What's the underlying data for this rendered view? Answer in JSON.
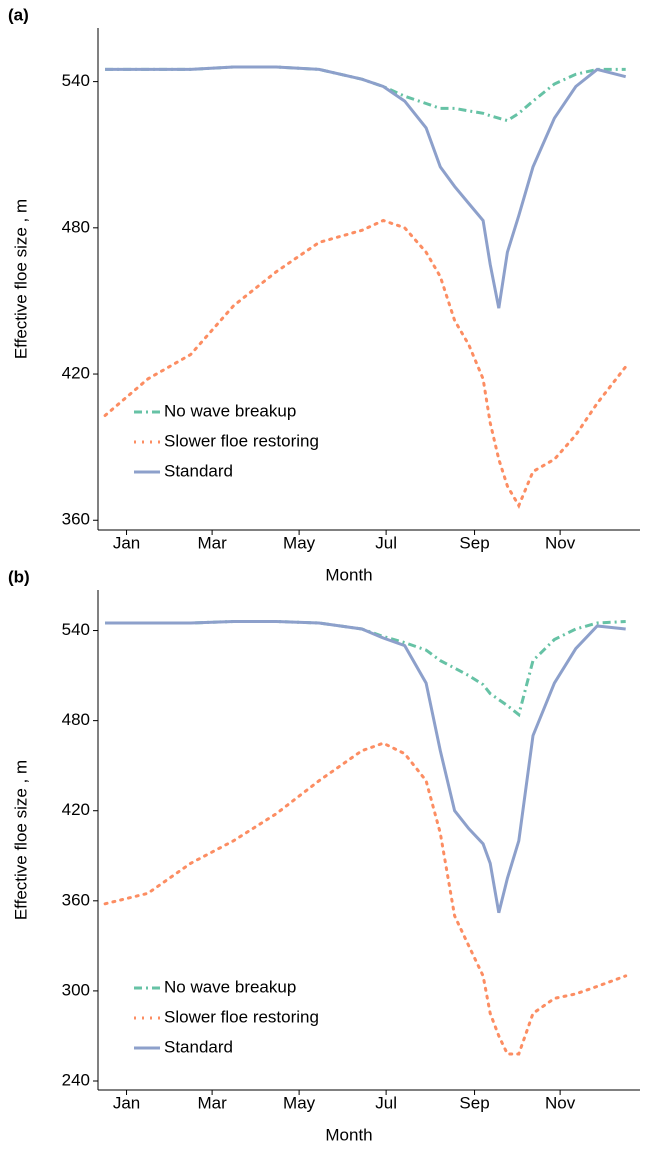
{
  "chart_data": [
    {
      "type": "line",
      "panel_label": "(a)",
      "x_label": "Month",
      "y_label": "Effective floe size , m",
      "x": [
        0,
        30,
        60,
        90,
        120,
        150,
        180,
        195,
        210,
        225,
        235,
        245,
        255,
        265,
        270,
        276,
        282,
        290,
        300,
        315,
        330,
        345,
        365
      ],
      "xlim": [
        -5,
        375
      ],
      "xticks": [
        {
          "value": 15,
          "label": "Jan"
        },
        {
          "value": 75,
          "label": "Mar"
        },
        {
          "value": 136,
          "label": "May"
        },
        {
          "value": 197,
          "label": "Jul"
        },
        {
          "value": 259,
          "label": "Sep"
        },
        {
          "value": 319,
          "label": "Nov"
        }
      ],
      "ylim": [
        356,
        562
      ],
      "yticks": [
        360,
        420,
        480,
        540
      ],
      "series": [
        {
          "name": "No wave breakup",
          "color": "#66c2a5",
          "dash": "8 4 2 4",
          "values": [
            545,
            545,
            545,
            546,
            546,
            545,
            541,
            538,
            534,
            531,
            529,
            529,
            528,
            527,
            526,
            525,
            524,
            527,
            532,
            539,
            543,
            545,
            545
          ]
        },
        {
          "name": "Slower floe restoring",
          "color": "#fc8d62",
          "dash": "2 6",
          "values": [
            403,
            418,
            428,
            448,
            462,
            474,
            479,
            483,
            480,
            470,
            460,
            442,
            432,
            418,
            400,
            385,
            374,
            366,
            380,
            385,
            395,
            408,
            423
          ]
        },
        {
          "name": "Standard",
          "color": "#8da0cb",
          "dash": "",
          "values": [
            545,
            545,
            545,
            546,
            546,
            545,
            541,
            538,
            532,
            521,
            505,
            497,
            490,
            483,
            465,
            447,
            470,
            485,
            505,
            525,
            538,
            545,
            542
          ]
        }
      ]
    },
    {
      "type": "line",
      "panel_label": "(b)",
      "x_label": "Month",
      "y_label": "Effective floe size , m",
      "x": [
        0,
        30,
        60,
        90,
        120,
        150,
        180,
        195,
        210,
        225,
        235,
        245,
        255,
        265,
        270,
        276,
        282,
        290,
        300,
        315,
        330,
        345,
        365
      ],
      "xlim": [
        -5,
        375
      ],
      "xticks": [
        {
          "value": 15,
          "label": "Jan"
        },
        {
          "value": 75,
          "label": "Mar"
        },
        {
          "value": 136,
          "label": "May"
        },
        {
          "value": 197,
          "label": "Jul"
        },
        {
          "value": 259,
          "label": "Sep"
        },
        {
          "value": 319,
          "label": "Nov"
        }
      ],
      "ylim": [
        234,
        567
      ],
      "yticks": [
        240,
        300,
        360,
        420,
        480,
        540
      ],
      "series": [
        {
          "name": "No wave breakup",
          "color": "#66c2a5",
          "dash": "8 4 2 4",
          "values": [
            545,
            545,
            545,
            546,
            546,
            545,
            541,
            536,
            532,
            527,
            520,
            515,
            510,
            504,
            498,
            494,
            490,
            484,
            520,
            534,
            541,
            545,
            546
          ]
        },
        {
          "name": "Slower floe restoring",
          "color": "#fc8d62",
          "dash": "2 6",
          "values": [
            358,
            365,
            385,
            400,
            418,
            440,
            460,
            465,
            458,
            440,
            405,
            350,
            330,
            310,
            285,
            270,
            258,
            258,
            285,
            295,
            298,
            303,
            310
          ]
        },
        {
          "name": "Standard",
          "color": "#8da0cb",
          "dash": "",
          "values": [
            545,
            545,
            545,
            546,
            546,
            545,
            541,
            535,
            530,
            505,
            460,
            420,
            408,
            398,
            385,
            352,
            375,
            400,
            470,
            505,
            528,
            543,
            541
          ]
        }
      ]
    }
  ]
}
